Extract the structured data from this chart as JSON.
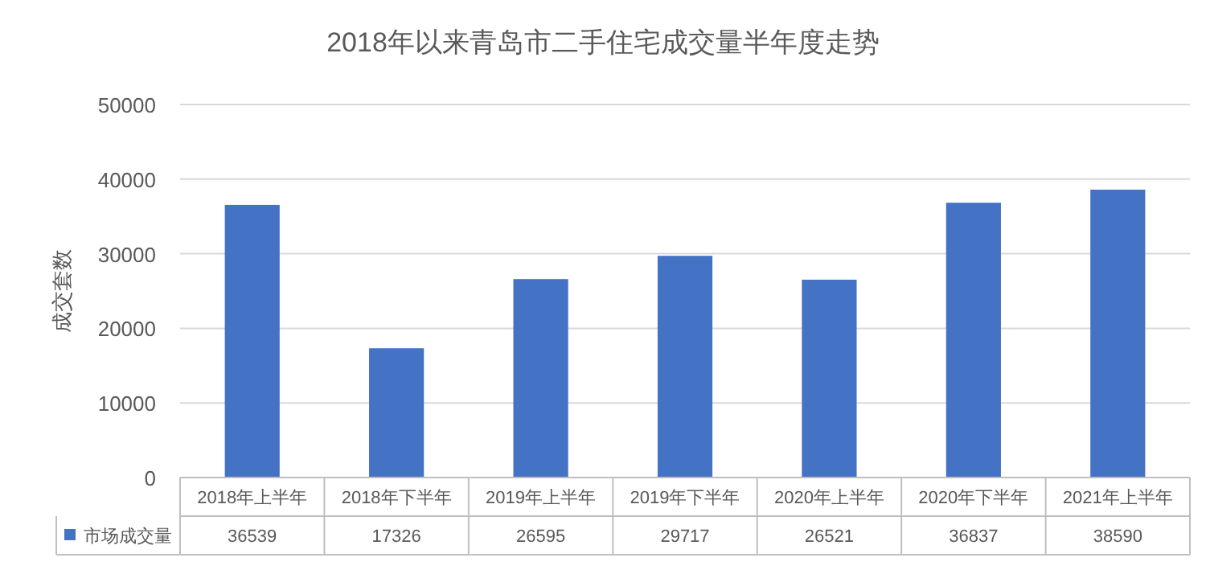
{
  "chart_data": {
    "type": "bar",
    "title": "2018年以来青岛市二手住宅成交量半年度走势",
    "ylabel": "成交套数",
    "categories": [
      "2018年上半年",
      "2018年下半年",
      "2019年上半年",
      "2019年下半年",
      "2020年上半年",
      "2020年下半年",
      "2021年上半年"
    ],
    "series": [
      {
        "name": "市场成交量",
        "color": "#4472c4",
        "values": [
          36539,
          17326,
          26595,
          29717,
          26521,
          36837,
          38590
        ]
      }
    ],
    "ylim": [
      0,
      50000
    ],
    "yticks": [
      0,
      10000,
      20000,
      30000,
      40000,
      50000
    ],
    "grid": "y",
    "data_labels": true,
    "legend": "bottom"
  }
}
